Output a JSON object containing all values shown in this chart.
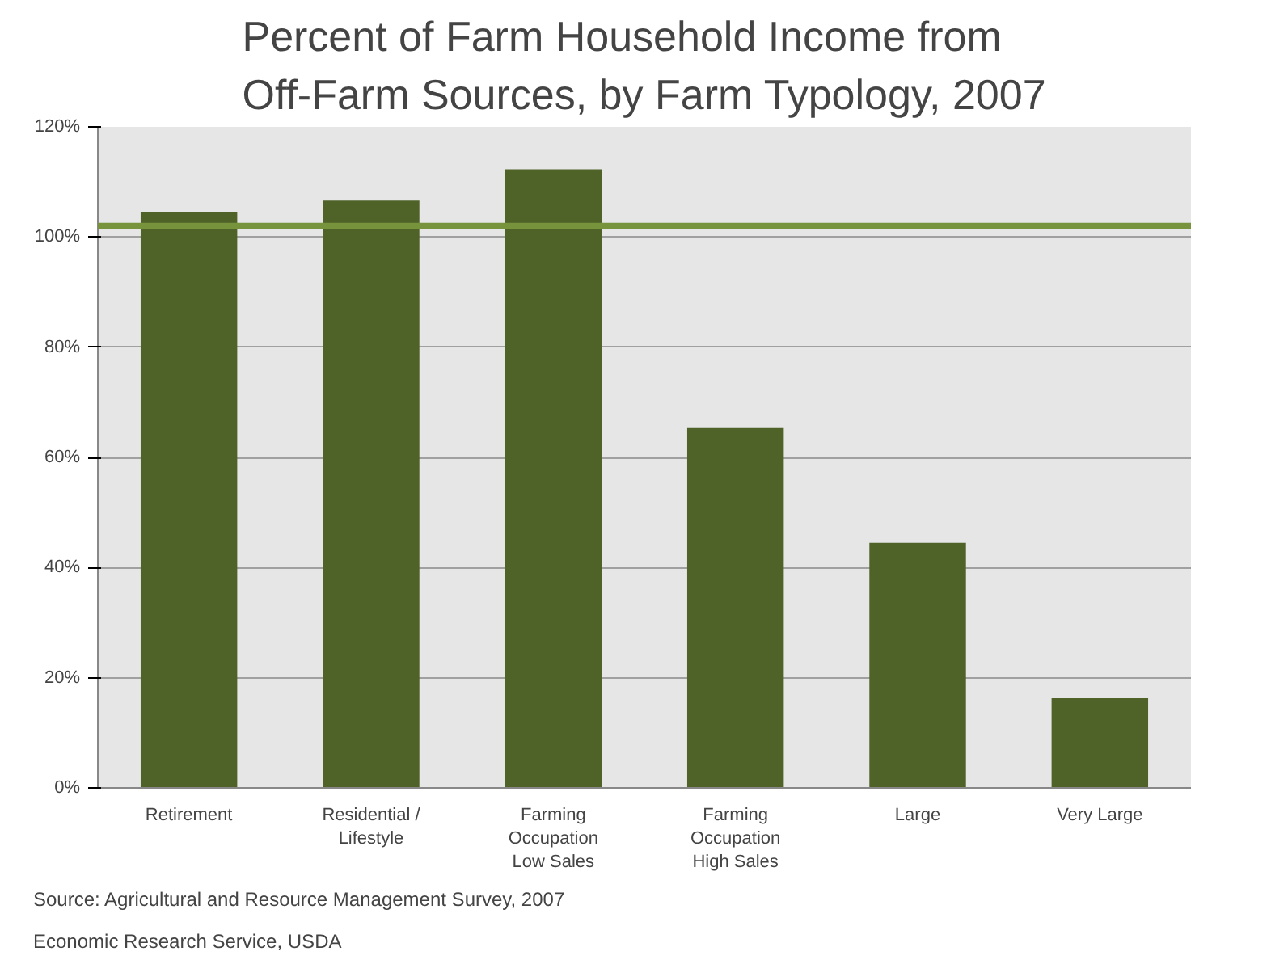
{
  "chart_data": {
    "type": "bar",
    "title": "Percent of Farm Household Income from\nOff-Farm Sources, by Farm Typology, 2007",
    "categories": [
      "Retirement",
      "Residential /\nLifestyle",
      "Farming\nOccupation\nLow Sales",
      "Farming\nOccupation\nHigh Sales",
      "Large",
      "Very Large"
    ],
    "values": [
      104.6,
      106.6,
      112.3,
      65.3,
      44.5,
      16.3
    ],
    "color": "#4f6228",
    "ylim": [
      0,
      120
    ],
    "yticks": [
      {
        "value": 0,
        "label": "0%"
      },
      {
        "value": 20,
        "label": "20%"
      },
      {
        "value": 40,
        "label": "40%"
      },
      {
        "value": 60,
        "label": "60%"
      },
      {
        "value": 80,
        "label": "80%"
      },
      {
        "value": 100,
        "label": "100%"
      },
      {
        "value": 120,
        "label": "120%"
      }
    ],
    "grid": "y",
    "ref_lines": [
      {
        "axis": "y",
        "value": 102,
        "label": null,
        "color": "#77933c"
      }
    ],
    "annotations": [
      "Source: Agricultural and Resource Management Survey, 2007",
      "Economic Research Service, USDA"
    ]
  }
}
